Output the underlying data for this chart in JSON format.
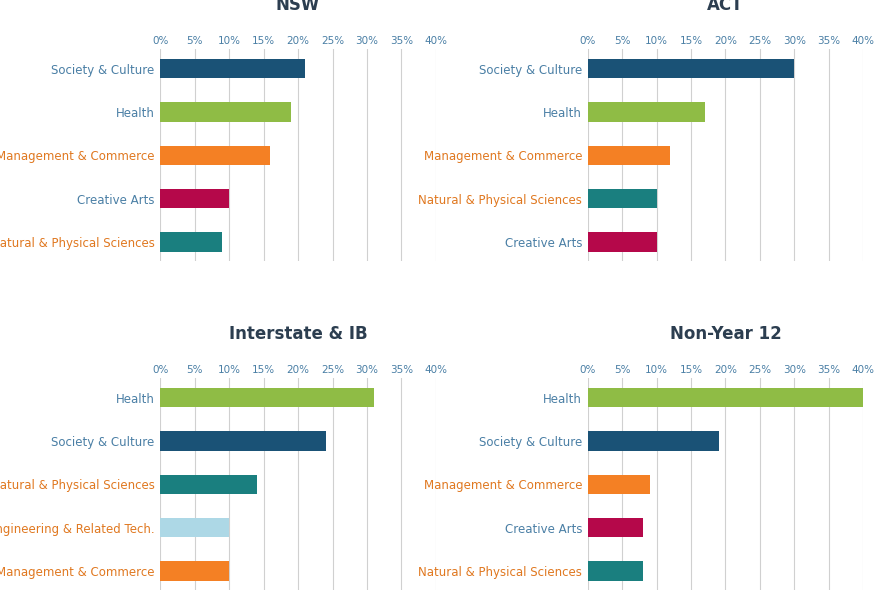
{
  "panels": [
    {
      "title": "NSW",
      "categories": [
        "Society & Culture",
        "Health",
        "Management & Commerce",
        "Creative Arts",
        "Natural & Physical Sciences"
      ],
      "values": [
        21,
        19,
        16,
        10,
        9
      ],
      "colors": [
        "#1a5276",
        "#8fbc45",
        "#f48024",
        "#b5084a",
        "#1a7f7f"
      ],
      "label_colors": [
        "#4a7fa5",
        "#4a7fa5",
        "#e07820",
        "#4a7fa5",
        "#e07820"
      ]
    },
    {
      "title": "ACT",
      "categories": [
        "Society & Culture",
        "Health",
        "Management & Commerce",
        "Natural & Physical Sciences",
        "Creative Arts"
      ],
      "values": [
        30,
        17,
        12,
        10,
        10
      ],
      "colors": [
        "#1a5276",
        "#8fbc45",
        "#f48024",
        "#1a7f7f",
        "#b5084a"
      ],
      "label_colors": [
        "#4a7fa5",
        "#4a7fa5",
        "#e07820",
        "#e07820",
        "#4a7fa5"
      ]
    },
    {
      "title": "Interstate & IB",
      "categories": [
        "Health",
        "Society & Culture",
        "Natural & Physical Sciences",
        "Engineering & Related Tech.",
        "Management & Commerce"
      ],
      "values": [
        31,
        24,
        14,
        10,
        10
      ],
      "colors": [
        "#8fbc45",
        "#1a5276",
        "#1a7f7f",
        "#add8e6",
        "#f48024"
      ],
      "label_colors": [
        "#4a7fa5",
        "#4a7fa5",
        "#e07820",
        "#e07820",
        "#e07820"
      ]
    },
    {
      "title": "Non-Year 12",
      "categories": [
        "Health",
        "Society & Culture",
        "Management & Commerce",
        "Creative Arts",
        "Natural & Physical Sciences"
      ],
      "values": [
        40,
        19,
        9,
        8,
        8
      ],
      "colors": [
        "#8fbc45",
        "#1a5276",
        "#f48024",
        "#b5084a",
        "#1a7f7f"
      ],
      "label_colors": [
        "#4a7fa5",
        "#4a7fa5",
        "#e07820",
        "#4a7fa5",
        "#e07820"
      ]
    }
  ],
  "xlim": [
    0,
    40
  ],
  "xticks": [
    0,
    5,
    10,
    15,
    20,
    25,
    30,
    35,
    40
  ],
  "xticklabels": [
    "0%",
    "5%",
    "10%",
    "15%",
    "20%",
    "25%",
    "30%",
    "35%",
    "40%"
  ],
  "grid_color": "#d0d0d0",
  "title_color": "#2c3e50",
  "tick_color": "#4a7fa5",
  "background_color": "#ffffff",
  "title_fontsize": 12,
  "label_fontsize": 8.5,
  "tick_fontsize": 7.5,
  "bar_height": 0.45
}
